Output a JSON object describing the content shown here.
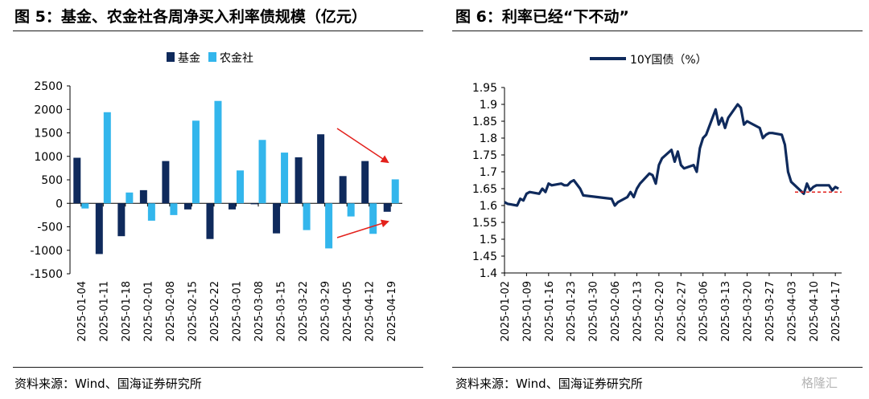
{
  "left_figure": {
    "title": "图 5：基金、农金社各周净买入利率债规模（亿元）",
    "source": "资料来源：Wind、国海证券研究所"
  },
  "right_figure": {
    "title": "图 6：利率已经“下不动”",
    "source": "资料来源：Wind、国海证券研究所"
  },
  "watermark": "格隆汇",
  "colors": {
    "fund": "#0f2a5c",
    "rural": "#33b6ec",
    "line": "#0f2a5c",
    "arrow": "#e3211c",
    "dashed": "#e3211c"
  },
  "chart_data": [
    {
      "type": "bar",
      "title": "",
      "categories": [
        "2025-01-04",
        "2025-01-11",
        "2025-01-18",
        "2025-02-01",
        "2025-02-08",
        "2025-02-15",
        "2025-02-22",
        "2025-03-01",
        "2025-03-08",
        "2025-03-15",
        "2025-03-22",
        "2025-03-29",
        "2025-04-05",
        "2025-04-12",
        "2025-04-19"
      ],
      "series": [
        {
          "name": "基金",
          "values": [
            970,
            -1080,
            -700,
            280,
            900,
            -130,
            -760,
            -130,
            -20,
            -640,
            980,
            1470,
            580,
            900,
            -180
          ]
        },
        {
          "name": "农金社",
          "values": [
            -110,
            1940,
            230,
            -370,
            -250,
            1760,
            2180,
            700,
            1350,
            1080,
            -570,
            -960,
            -280,
            -650,
            510
          ]
        }
      ],
      "ylim": [
        -1500,
        2500
      ],
      "yticks": [
        -1500,
        -1000,
        -500,
        0,
        500,
        1000,
        1500,
        2000,
        2500
      ],
      "xlabel": "",
      "ylabel": "",
      "grid": false,
      "legend": "top-center",
      "annotations": [
        "downward red arrow over late bars",
        "upward red arrow under late bars"
      ]
    },
    {
      "type": "line",
      "title": "",
      "series": [
        {
          "name": "10Y国债（%）",
          "x": [
            "2025-01-02",
            "2025-01-03",
            "2025-01-06",
            "2025-01-07",
            "2025-01-08",
            "2025-01-09",
            "2025-01-10",
            "2025-01-13",
            "2025-01-14",
            "2025-01-15",
            "2025-01-16",
            "2025-01-17",
            "2025-01-20",
            "2025-01-21",
            "2025-01-22",
            "2025-01-23",
            "2025-01-24",
            "2025-01-26",
            "2025-01-27",
            "2025-02-05",
            "2025-02-06",
            "2025-02-07",
            "2025-02-10",
            "2025-02-11",
            "2025-02-12",
            "2025-02-13",
            "2025-02-14",
            "2025-02-17",
            "2025-02-18",
            "2025-02-19",
            "2025-02-20",
            "2025-02-21",
            "2025-02-24",
            "2025-02-25",
            "2025-02-26",
            "2025-02-27",
            "2025-02-28",
            "2025-03-03",
            "2025-03-04",
            "2025-03-05",
            "2025-03-06",
            "2025-03-07",
            "2025-03-10",
            "2025-03-11",
            "2025-03-12",
            "2025-03-13",
            "2025-03-14",
            "2025-03-17",
            "2025-03-18",
            "2025-03-19",
            "2025-03-20",
            "2025-03-21",
            "2025-03-24",
            "2025-03-25",
            "2025-03-26",
            "2025-03-27",
            "2025-03-28",
            "2025-03-31",
            "2025-04-01",
            "2025-04-02",
            "2025-04-03",
            "2025-04-07",
            "2025-04-08",
            "2025-04-09",
            "2025-04-10",
            "2025-04-11",
            "2025-04-14",
            "2025-04-15",
            "2025-04-16",
            "2025-04-17",
            "2025-04-18"
          ],
          "y": [
            1.61,
            1.605,
            1.6,
            1.62,
            1.615,
            1.635,
            1.64,
            1.635,
            1.65,
            1.64,
            1.665,
            1.66,
            1.665,
            1.66,
            1.66,
            1.67,
            1.675,
            1.65,
            1.63,
            1.62,
            1.6,
            1.61,
            1.625,
            1.64,
            1.625,
            1.65,
            1.665,
            1.695,
            1.69,
            1.665,
            1.72,
            1.74,
            1.765,
            1.73,
            1.76,
            1.72,
            1.71,
            1.72,
            1.7,
            1.77,
            1.8,
            1.81,
            1.885,
            1.84,
            1.86,
            1.83,
            1.86,
            1.9,
            1.89,
            1.84,
            1.85,
            1.845,
            1.83,
            1.8,
            1.81,
            1.815,
            1.815,
            1.81,
            1.78,
            1.7,
            1.67,
            1.635,
            1.665,
            1.645,
            1.655,
            1.66,
            1.66,
            1.66,
            1.645,
            1.655,
            1.65
          ]
        }
      ],
      "ylim": [
        1.4,
        1.95
      ],
      "yticks": [
        "1.4",
        "1.45",
        "1.5",
        "1.55",
        "1.6",
        "1.65",
        "1.7",
        "1.75",
        "1.8",
        "1.85",
        "1.9",
        "1.95"
      ],
      "xticks": [
        "2025-01-02",
        "2025-01-09",
        "2025-01-16",
        "2025-01-23",
        "2025-01-30",
        "2025-02-06",
        "2025-02-13",
        "2025-02-20",
        "2025-02-27",
        "2025-03-06",
        "2025-03-13",
        "2025-03-20",
        "2025-03-27",
        "2025-04-03",
        "2025-04-10",
        "2025-04-17"
      ],
      "xlabel": "",
      "ylabel": "",
      "grid": false,
      "legend": "top-center",
      "reference_line": {
        "y": 1.64,
        "style": "dashed"
      }
    }
  ]
}
